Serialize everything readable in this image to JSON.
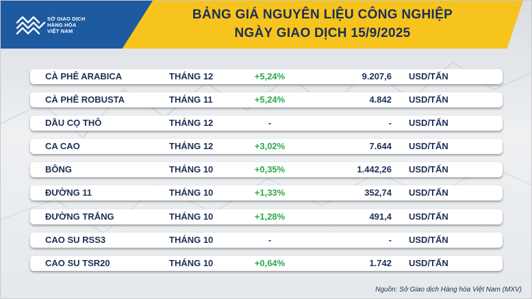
{
  "header": {
    "logo_lines": [
      "SỞ GIAO DỊCH",
      "HÀNG HÓA",
      "VIỆT NAM"
    ],
    "title_line1": "BẢNG GIÁ NGUYÊN LIỆU CÔNG NGHIỆP",
    "title_line2": "NGÀY GIAO DỊCH 15/9/2025"
  },
  "rows": [
    {
      "name": "CÀ PHÊ ARABICA",
      "month": "THÁNG 12",
      "change": "+5,24%",
      "price": "9.207,6",
      "unit": "USD/TẤN"
    },
    {
      "name": "CÀ PHÊ ROBUSTA",
      "month": "THÁNG 11",
      "change": "+5,24%",
      "price": "4.842",
      "unit": "USD/TẤN"
    },
    {
      "name": "DẦU CỌ THÔ",
      "month": "THÁNG 12",
      "change": "-",
      "price": "-",
      "unit": "USD/TẤN"
    },
    {
      "name": "CA CAO",
      "month": "THÁNG 12",
      "change": "+3,02%",
      "price": "7.644",
      "unit": "USD/TẤN"
    },
    {
      "name": "BÔNG",
      "month": "THÁNG 10",
      "change": "+0,35%",
      "price": "1.442,26",
      "unit": "USD/TẤN"
    },
    {
      "name": "ĐƯỜNG 11",
      "month": "THÁNG 10",
      "change": "+1,33%",
      "price": "352,74",
      "unit": "USD/TẤN"
    },
    {
      "name": "ĐƯỜNG TRẮNG",
      "month": "THÁNG 10",
      "change": "+1,28%",
      "price": "491,4",
      "unit": "USD/TẤN"
    },
    {
      "name": "CAO SU RSS3",
      "month": "THÁNG 10",
      "change": "-",
      "price": "-",
      "unit": "USD/TẤN"
    },
    {
      "name": "CAO SU TSR20",
      "month": "THÁNG 10",
      "change": "+0,64%",
      "price": "1.742",
      "unit": "USD/TẤN"
    }
  ],
  "source": "Nguồn: Sở Giao dịch Hàng hóa Việt Nam (MXV)",
  "colors": {
    "accent_yellow": "#f7c31d",
    "brand_blue": "#1e5aa0",
    "text_navy": "#1b2f55",
    "positive_green": "#2aa84a"
  }
}
